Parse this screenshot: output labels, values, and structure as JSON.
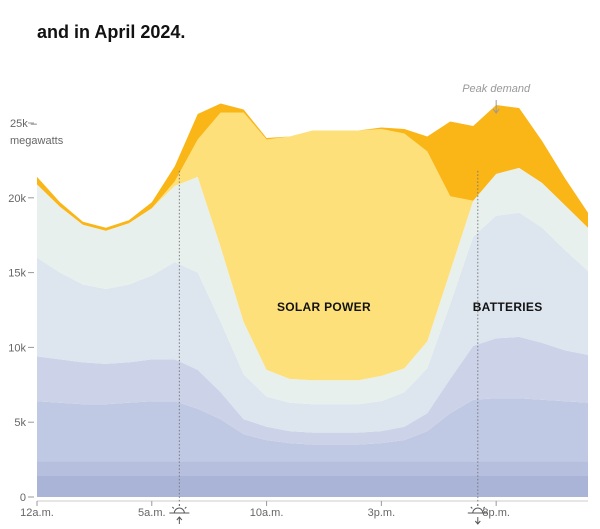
{
  "headline": "and in April 2024.",
  "chart_data": {
    "type": "area",
    "stacked": true,
    "title": "",
    "ylabel": "megawatts",
    "ylim": [
      0,
      25000
    ],
    "xlim": [
      0,
      24
    ],
    "y_ticks": [
      {
        "value": 0,
        "label": "0"
      },
      {
        "value": 5000,
        "label": "5k"
      },
      {
        "value": 10000,
        "label": "10k"
      },
      {
        "value": 15000,
        "label": "15k"
      },
      {
        "value": 20000,
        "label": "20k"
      },
      {
        "value": 25000,
        "label": "25k –"
      }
    ],
    "y_unit_label": "megawatts",
    "x_ticks": [
      {
        "value": 0,
        "label": "12a.m."
      },
      {
        "value": 5,
        "label": "5a.m."
      },
      {
        "value": 10,
        "label": "10a.m."
      },
      {
        "value": 15,
        "label": "3p.m."
      },
      {
        "value": 20,
        "label": "8p.m."
      }
    ],
    "x": [
      0,
      1,
      2,
      3,
      4,
      5,
      6,
      7,
      8,
      9,
      10,
      11,
      12,
      13,
      14,
      15,
      16,
      17,
      18,
      19,
      20,
      21,
      22,
      23,
      24
    ],
    "series": [
      {
        "name": "",
        "color": "#a9b4d6",
        "values": [
          1400,
          1400,
          1400,
          1400,
          1400,
          1400,
          1400,
          1400,
          1400,
          1400,
          1400,
          1400,
          1400,
          1400,
          1400,
          1400,
          1400,
          1400,
          1400,
          1400,
          1400,
          1400,
          1400,
          1400,
          1400
        ]
      },
      {
        "name": "",
        "color": "#b6c0de",
        "values": [
          1000,
          1000,
          1000,
          1000,
          1000,
          1000,
          1000,
          1000,
          1000,
          1000,
          1000,
          1000,
          1000,
          1000,
          1000,
          1000,
          1000,
          1000,
          1000,
          1000,
          1000,
          1000,
          1000,
          1000,
          1000
        ]
      },
      {
        "name": "",
        "color": "#c0c9e3",
        "values": [
          4000,
          3900,
          3800,
          3800,
          3900,
          4000,
          4000,
          3500,
          2800,
          1800,
          1400,
          1200,
          1100,
          1100,
          1100,
          1200,
          1400,
          2000,
          3200,
          4100,
          4200,
          4200,
          4100,
          4000,
          3900
        ]
      },
      {
        "name": "",
        "color": "#ccd3e8",
        "values": [
          3000,
          2900,
          2800,
          2700,
          2700,
          2800,
          2800,
          2600,
          1800,
          1000,
          900,
          800,
          800,
          800,
          800,
          800,
          900,
          1200,
          2300,
          3600,
          4000,
          4100,
          3800,
          3400,
          3200
        ]
      },
      {
        "name": "",
        "color": "#dde5ee",
        "values": [
          6600,
          5800,
          5200,
          5000,
          5200,
          5600,
          6500,
          6500,
          4700,
          3000,
          2000,
          1900,
          1900,
          1900,
          1900,
          2000,
          2300,
          3000,
          5000,
          7300,
          8200,
          8300,
          7700,
          6700,
          5600
        ]
      },
      {
        "name": "",
        "color": "#e8f0ee",
        "values": [
          4900,
          4400,
          4000,
          3900,
          4100,
          4500,
          5100,
          6400,
          5000,
          3500,
          1800,
          1600,
          1600,
          1600,
          1600,
          1700,
          1600,
          1800,
          2200,
          2400,
          2800,
          3000,
          3000,
          3000,
          2900
        ]
      },
      {
        "name": "SOLAR POWER",
        "color": "#fde07a",
        "values": [
          0,
          0,
          0,
          0,
          0,
          0,
          300,
          2500,
          9000,
          14000,
          15400,
          16200,
          16700,
          16700,
          16700,
          16500,
          15700,
          12700,
          5000,
          0,
          0,
          0,
          0,
          0,
          0
        ]
      },
      {
        "name": "BATTERIES",
        "color": "#fab516",
        "values": [
          500,
          300,
          200,
          200,
          200,
          400,
          1000,
          1700,
          600,
          200,
          100,
          0,
          0,
          0,
          0,
          100,
          300,
          1000,
          5000,
          5000,
          4600,
          4000,
          2800,
          1800,
          1000
        ]
      }
    ],
    "labels": [
      {
        "text": "SOLAR POWER",
        "x": 12.5,
        "y": 12700
      },
      {
        "text": "BATTERIES",
        "x": 20.5,
        "y": 12700
      }
    ],
    "annotations": [
      {
        "text": "Peak demand",
        "x": 20
      }
    ],
    "vertical_markers": [
      {
        "x": 6.2,
        "meaning": "sunrise"
      },
      {
        "x": 19.2,
        "meaning": "sunset"
      }
    ],
    "grid": false,
    "legend": "none"
  }
}
